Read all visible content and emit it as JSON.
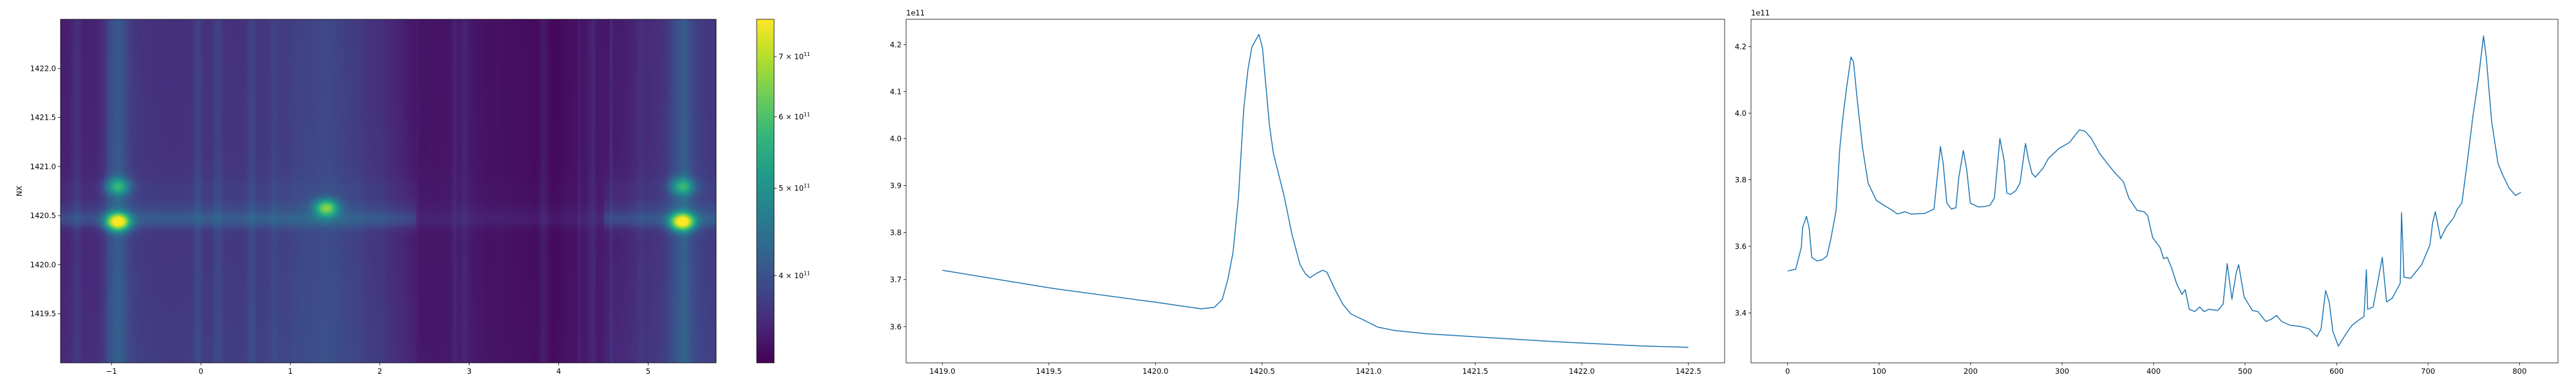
{
  "chart_data": [
    {
      "type": "heatmap",
      "ylabel": "NX",
      "xlabel": "",
      "xlim": [
        -1.57,
        5.76
      ],
      "ylim": [
        1419.0,
        1422.5
      ],
      "xticks": [
        -1,
        0,
        1,
        2,
        3,
        4,
        5
      ],
      "xtick_labels": [
        "−1",
        "0",
        "1",
        "2",
        "3",
        "4",
        "5"
      ],
      "yticks": [
        1419.5,
        1420.0,
        1420.5,
        1421.0,
        1421.5,
        1422.0
      ],
      "ytick_labels": [
        "1419.5",
        "1420.0",
        "1420.5",
        "1421.0",
        "1421.5",
        "1422.0"
      ],
      "colormap": "viridis",
      "color_scale": "log",
      "colorbar": {
        "vmin": 320000000000.0,
        "vmax": 770000000000.0,
        "ticks": [
          400000000000.0,
          500000000000.0,
          600000000000.0,
          700000000000.0
        ],
        "tick_labels": [
          {
            "mantissa": "4 × 10",
            "exponent": "11"
          },
          {
            "mantissa": "5 × 10",
            "exponent": "11"
          },
          {
            "mantissa": "6 × 10",
            "exponent": "11"
          },
          {
            "mantissa": "7 × 10",
            "exponent": "11"
          }
        ]
      },
      "bright_features": [
        {
          "x": -0.93,
          "y": 1420.44,
          "value": 760000000000.0
        },
        {
          "x": -0.93,
          "y": 1420.8,
          "value": 530000000000.0
        },
        {
          "x": 1.4,
          "y": 1420.58,
          "value": 620000000000.0
        },
        {
          "x": 5.38,
          "y": 1420.44,
          "value": 760000000000.0
        },
        {
          "x": 5.38,
          "y": 1420.8,
          "value": 530000000000.0
        }
      ]
    },
    {
      "type": "line",
      "offset_label": "1e11",
      "xlim": [
        1418.83,
        1422.67
      ],
      "ylim": [
        3.523,
        4.254
      ],
      "xticks": [
        1419.0,
        1419.5,
        1420.0,
        1420.5,
        1421.0,
        1421.5,
        1422.0,
        1422.5
      ],
      "xtick_labels": [
        "1419.0",
        "1419.5",
        "1420.0",
        "1420.5",
        "1421.0",
        "1421.5",
        "1422.0",
        "1422.5"
      ],
      "yticks": [
        3.6,
        3.7,
        3.8,
        3.9,
        4.0,
        4.1,
        4.2
      ],
      "ytick_labels": [
        "3.6",
        "3.7",
        "3.8",
        "3.9",
        "4.0",
        "4.1",
        "4.2"
      ],
      "color": "#1f77b4",
      "x": [
        1419.0,
        1419.508,
        1420.0,
        1420.213,
        1420.276,
        1420.313,
        1420.339,
        1420.364,
        1420.389,
        1420.414,
        1420.434,
        1420.452,
        1420.485,
        1420.502,
        1420.535,
        1420.553,
        1420.603,
        1420.641,
        1420.678,
        1420.704,
        1420.724,
        1420.754,
        1420.784,
        1420.804,
        1420.842,
        1420.88,
        1420.917,
        1420.968,
        1421.043,
        1421.119,
        1421.27,
        1421.584,
        1421.919,
        1422.276,
        1422.5
      ],
      "y": [
        3.72,
        3.682,
        3.652,
        3.638,
        3.641,
        3.658,
        3.7,
        3.758,
        3.874,
        4.064,
        4.148,
        4.195,
        4.222,
        4.193,
        4.027,
        3.969,
        3.879,
        3.795,
        3.732,
        3.712,
        3.704,
        3.713,
        3.72,
        3.716,
        3.679,
        3.647,
        3.627,
        3.616,
        3.599,
        3.592,
        3.585,
        3.576,
        3.567,
        3.559,
        3.556
      ]
    },
    {
      "type": "line",
      "offset_label": "1e11",
      "xlim": [
        -40,
        842
      ],
      "ylim": [
        3.25,
        4.282
      ],
      "xticks": [
        0,
        100,
        200,
        300,
        400,
        500,
        600,
        700,
        800
      ],
      "xtick_labels": [
        "0",
        "100",
        "200",
        "300",
        "400",
        "500",
        "600",
        "700",
        "800"
      ],
      "yticks": [
        3.4,
        3.6,
        3.8,
        4.0,
        4.2
      ],
      "ytick_labels": [
        "3.4",
        "3.6",
        "3.8",
        "4.0",
        "4.2"
      ],
      "color": "#1f77b4",
      "x": [
        0,
        8.8,
        15,
        16.4,
        20.6,
        23.5,
        26.4,
        32,
        38,
        43,
        47,
        53,
        57,
        60.5,
        64.6,
        69.3,
        72,
        76,
        82,
        88,
        97,
        103,
        114.5,
        120,
        128,
        135,
        150,
        160,
        164,
        167,
        170,
        174,
        179,
        184,
        187,
        192,
        195.6,
        199.7,
        208.5,
        214,
        221,
        226,
        232,
        236.7,
        239.6,
        243.8,
        249.6,
        254,
        260,
        263,
        267,
        270.8,
        279,
        285,
        296.6,
        308,
        319,
        325,
        332,
        341,
        349.5,
        358,
        367,
        373,
        382,
        389.5,
        393.5,
        399,
        407,
        411,
        415,
        419.8,
        425.6,
        431,
        434.6,
        439,
        445,
        450.5,
        455,
        461,
        470,
        476,
        480.5,
        485.6,
        490.5,
        493,
        499,
        508,
        514,
        522.7,
        528.6,
        534.5,
        540,
        549,
        561,
        570,
        578.6,
        583,
        588,
        592,
        596,
        602,
        611,
        617,
        625.5,
        630,
        632.6,
        634,
        640,
        646,
        650,
        654.6,
        660.8,
        669.6,
        671,
        673.7,
        681,
        693,
        702,
        705,
        708,
        713.7,
        719.6,
        728,
        732,
        737,
        743,
        749,
        755,
        760.6,
        763.6,
        769.5,
        776.5,
        782,
        788.6,
        795.6,
        801.5
      ],
      "y": [
        3.526,
        3.531,
        3.597,
        3.656,
        3.69,
        3.656,
        3.567,
        3.556,
        3.56,
        3.571,
        3.619,
        3.708,
        3.894,
        3.99,
        4.08,
        4.169,
        4.154,
        4.042,
        3.894,
        3.79,
        3.738,
        3.727,
        3.708,
        3.697,
        3.704,
        3.697,
        3.699,
        3.712,
        3.82,
        3.9,
        3.85,
        3.73,
        3.712,
        3.716,
        3.805,
        3.888,
        3.834,
        3.73,
        3.718,
        3.719,
        3.723,
        3.745,
        3.924,
        3.857,
        3.76,
        3.756,
        3.768,
        3.79,
        3.909,
        3.864,
        3.82,
        3.808,
        3.834,
        3.864,
        3.894,
        3.912,
        3.95,
        3.946,
        3.924,
        3.879,
        3.849,
        3.82,
        3.794,
        3.745,
        3.708,
        3.704,
        3.693,
        3.626,
        3.597,
        3.563,
        3.567,
        3.534,
        3.485,
        3.456,
        3.47,
        3.411,
        3.404,
        3.418,
        3.404,
        3.411,
        3.407,
        3.426,
        3.548,
        3.441,
        3.522,
        3.545,
        3.448,
        3.407,
        3.404,
        3.374,
        3.381,
        3.392,
        3.374,
        3.363,
        3.359,
        3.352,
        3.329,
        3.352,
        3.467,
        3.433,
        3.344,
        3.3,
        3.34,
        3.363,
        3.381,
        3.389,
        3.53,
        3.411,
        3.418,
        3.507,
        3.567,
        3.433,
        3.444,
        3.489,
        3.701,
        3.507,
        3.504,
        3.545,
        3.604,
        3.671,
        3.704,
        3.623,
        3.656,
        3.686,
        3.712,
        3.73,
        3.857,
        3.99,
        4.102,
        4.232,
        4.169,
        3.976,
        3.849,
        3.812,
        3.775,
        3.753,
        3.762
      ]
    }
  ]
}
